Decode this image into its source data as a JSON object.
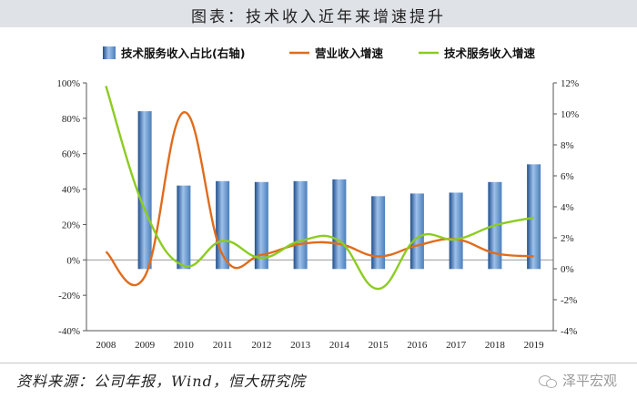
{
  "page_title": "图表：技术收入近年来增速提升",
  "source_text": "资料来源：公司年报，Wind，恒大研究院",
  "watermark_text": "泽平宏观",
  "chart_data": {
    "type": "bar",
    "categories": [
      "2008",
      "2009",
      "2010",
      "2011",
      "2012",
      "2013",
      "2014",
      "2015",
      "2016",
      "2017",
      "2018",
      "2019"
    ],
    "series": [
      {
        "name": "技术服务收入占比(右轴)",
        "kind": "bar",
        "axis": "left",
        "color": "#4a7ebb",
        "values": [
          null,
          84,
          42,
          44.5,
          44,
          44.5,
          45.5,
          36,
          37.5,
          38,
          44,
          54
        ]
      },
      {
        "name": "营业收入增速",
        "kind": "line",
        "axis": "right",
        "color": "#e06c1c",
        "values": [
          1.1,
          -0.5,
          10.1,
          0.9,
          0.9,
          1.6,
          1.6,
          0.8,
          1.5,
          1.9,
          1.0,
          0.8
        ]
      },
      {
        "name": "技术服务收入增速",
        "kind": "line",
        "axis": "right",
        "color": "#8ccc20",
        "values": [
          11.8,
          3.8,
          0.2,
          1.8,
          0.7,
          1.8,
          1.8,
          -1.3,
          2.0,
          1.9,
          2.8,
          3.3
        ]
      }
    ],
    "left_axis": {
      "min": -40,
      "max": 100,
      "ticks": [
        -40,
        -20,
        0,
        20,
        40,
        60,
        80,
        100
      ],
      "tick_labels": [
        "-40%",
        "-20%",
        "0%",
        "20%",
        "40%",
        "60%",
        "80%",
        "100%"
      ]
    },
    "right_axis": {
      "min": -4,
      "max": 12,
      "ticks": [
        -4,
        -2,
        0,
        2,
        4,
        6,
        8,
        10,
        12
      ],
      "tick_labels": [
        "-4%",
        "-2%",
        "0%",
        "2%",
        "4%",
        "6%",
        "8%",
        "10%",
        "12%"
      ]
    },
    "legend_position": "top"
  }
}
